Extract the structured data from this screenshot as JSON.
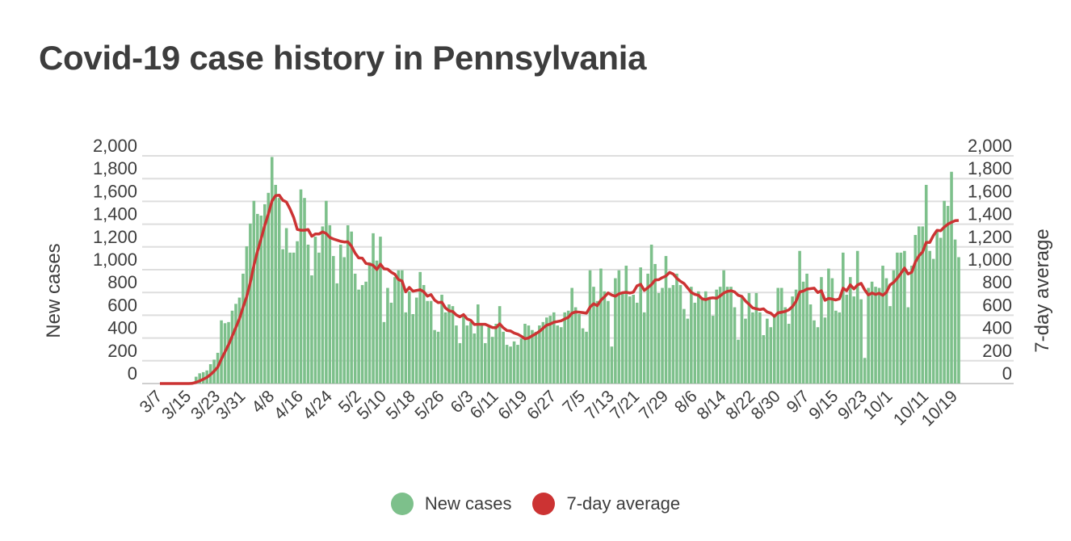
{
  "chart_data": {
    "type": "bar",
    "title": "Covid-19 case history in Pennsylvania",
    "ylabel": "New cases",
    "ylabel_right": "7-day average",
    "ylim": [
      0,
      2000
    ],
    "y_ticks": [
      "0",
      "200",
      "400",
      "600",
      "800",
      "1,000",
      "1,200",
      "1,400",
      "1,600",
      "1,800",
      "2,000"
    ],
    "y_tick_values": [
      0,
      200,
      400,
      600,
      800,
      1000,
      1200,
      1400,
      1600,
      1800,
      2000
    ],
    "grid": true,
    "legend_placement": "bottom-center",
    "x_ticks": [
      {
        "label": "3/7",
        "index": 0
      },
      {
        "label": "3/15",
        "index": 8
      },
      {
        "label": "3/23",
        "index": 16
      },
      {
        "label": "3/31",
        "index": 23
      },
      {
        "label": "4/8",
        "index": 31
      },
      {
        "label": "4/16",
        "index": 39
      },
      {
        "label": "4/24",
        "index": 47
      },
      {
        "label": "5/2",
        "index": 55
      },
      {
        "label": "5/10",
        "index": 62
      },
      {
        "label": "5/18",
        "index": 70
      },
      {
        "label": "5/26",
        "index": 78
      },
      {
        "label": "6/3",
        "index": 86
      },
      {
        "label": "6/11",
        "index": 93
      },
      {
        "label": "6/19",
        "index": 101
      },
      {
        "label": "6/27",
        "index": 109
      },
      {
        "label": "7/5",
        "index": 117
      },
      {
        "label": "7/13",
        "index": 125
      },
      {
        "label": "7/21",
        "index": 132
      },
      {
        "label": "7/29",
        "index": 140
      },
      {
        "label": "8/6",
        "index": 148
      },
      {
        "label": "8/14",
        "index": 156
      },
      {
        "label": "8/22",
        "index": 164
      },
      {
        "label": "8/30",
        "index": 171
      },
      {
        "label": "9/7",
        "index": 179
      },
      {
        "label": "9/15",
        "index": 187
      },
      {
        "label": "9/23",
        "index": 195
      },
      {
        "label": "10/1",
        "index": 202
      },
      {
        "label": "10/11",
        "index": 212
      },
      {
        "label": "10/19",
        "index": 220
      }
    ],
    "series": [
      {
        "name": "New cases",
        "type": "bar",
        "color": "#7dc08b",
        "values": [
          0,
          0,
          0,
          0,
          0,
          0,
          0,
          0,
          0,
          15,
          60,
          90,
          100,
          115,
          170,
          210,
          270,
          555,
          530,
          540,
          640,
          700,
          755,
          965,
          1205,
          1405,
          1605,
          1490,
          1475,
          1575,
          1675,
          1990,
          1745,
          1630,
          1180,
          1365,
          1150,
          1150,
          1250,
          1705,
          1630,
          1220,
          950,
          1290,
          1150,
          1380,
          1605,
          1390,
          1120,
          880,
          1220,
          1110,
          1390,
          1335,
          965,
          825,
          865,
          895,
          1065,
          1320,
          1080,
          1290,
          540,
          840,
          710,
          935,
          995,
          995,
          625,
          810,
          610,
          755,
          980,
          865,
          725,
          725,
          470,
          455,
          780,
          625,
          695,
          680,
          510,
          355,
          595,
          510,
          540,
          440,
          695,
          510,
          355,
          495,
          410,
          525,
          680,
          455,
          340,
          325,
          370,
          340,
          395,
          525,
          510,
          470,
          455,
          510,
          540,
          580,
          595,
          625,
          510,
          495,
          625,
          640,
          840,
          670,
          610,
          485,
          455,
          995,
          850,
          725,
          1010,
          810,
          725,
          325,
          925,
          995,
          795,
          1035,
          765,
          780,
          710,
          1020,
          625,
          965,
          1220,
          1050,
          795,
          840,
          1120,
          840,
          865,
          965,
          865,
          655,
          570,
          850,
          710,
          810,
          755,
          810,
          740,
          595,
          825,
          850,
          995,
          850,
          850,
          670,
          385,
          755,
          570,
          795,
          625,
          795,
          625,
          425,
          570,
          495,
          595,
          840,
          840,
          670,
          525,
          765,
          825,
          1165,
          895,
          965,
          695,
          555,
          495,
          935,
          580,
          1010,
          925,
          640,
          625,
          1150,
          780,
          935,
          765,
          1165,
          740,
          225,
          840,
          895,
          850,
          840,
          1035,
          925,
          680,
          995,
          1150,
          1150,
          1165,
          670,
          1035,
          1305,
          1380,
          1380,
          1745,
          1165,
          1095,
          1350,
          1280,
          1605,
          1560,
          1860,
          1265,
          1110
        ]
      },
      {
        "name": "7-day average",
        "type": "line",
        "color": "#cc3333",
        "window": 7
      }
    ]
  }
}
